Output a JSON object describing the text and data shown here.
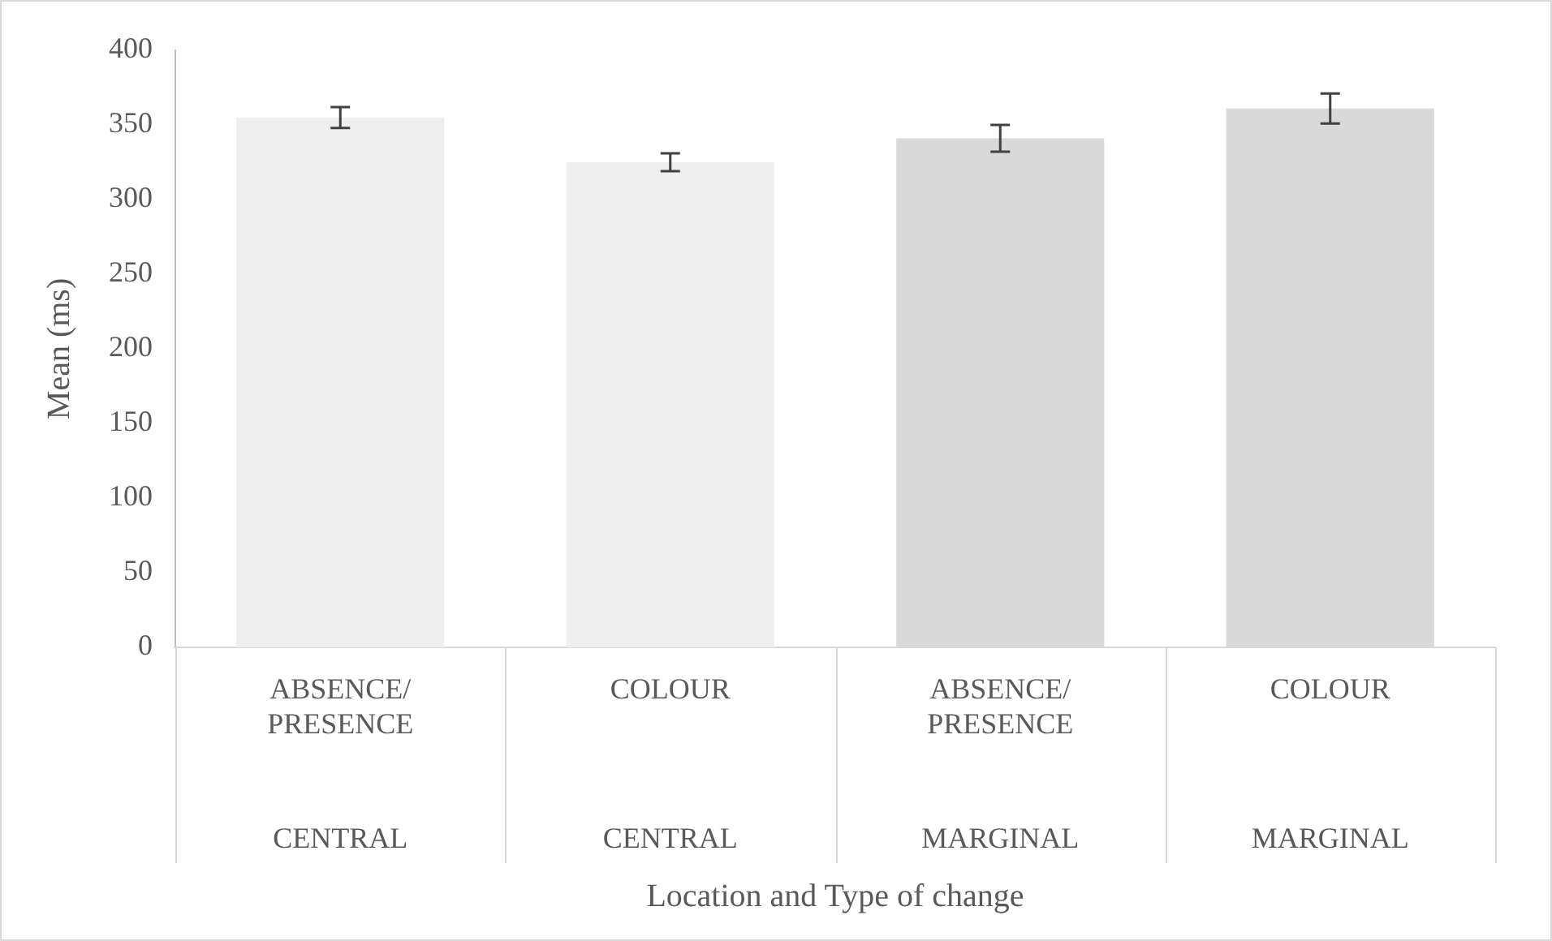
{
  "chart_data": {
    "type": "bar",
    "xlabel": "Location and Type of change",
    "ylabel": "Mean (ms)",
    "categories": [
      "ABSENCE/PRESENCE",
      "COLOUR",
      "ABSENCE/PRESENCE",
      "COLOUR"
    ],
    "annotations": [
      "CENTRAL",
      "CENTRAL",
      "MARGINAL",
      "MARGINAL"
    ],
    "values": [
      355,
      325,
      341,
      361
    ],
    "errors": [
      7,
      6,
      9,
      10
    ],
    "colors": [
      "#efefef",
      "#efefef",
      "#d9d9d9",
      "#d9d9d9"
    ],
    "ylim": [
      0,
      400
    ],
    "yticks": [
      0,
      50,
      100,
      150,
      200,
      250,
      300,
      350,
      400
    ],
    "grid": false,
    "legend": false
  }
}
